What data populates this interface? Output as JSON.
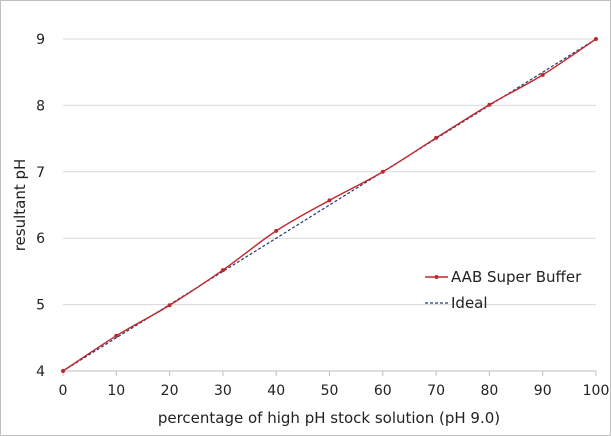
{
  "chart_data": {
    "type": "line",
    "title": "",
    "xlabel": "percentage of high pH stock solution (pH 9.0)",
    "ylabel": "resultant pH",
    "xlim": [
      0,
      100
    ],
    "ylim": [
      4,
      9
    ],
    "xticks": [
      0,
      10,
      20,
      30,
      40,
      50,
      60,
      70,
      80,
      90,
      100
    ],
    "yticks": [
      4,
      5,
      6,
      7,
      8,
      9
    ],
    "grid": "horizontal",
    "legend_position": "right",
    "series": [
      {
        "name": "AAB Super Buffer",
        "color": "#c0282d",
        "style": "solid-with-markers",
        "x": [
          0,
          10,
          20,
          30,
          40,
          50,
          60,
          70,
          80,
          90,
          100
        ],
        "y": [
          4.0,
          4.53,
          4.99,
          5.52,
          6.11,
          6.57,
          7.0,
          7.51,
          8.01,
          8.46,
          9.0
        ]
      },
      {
        "name": "Ideal",
        "color": "#1f3a6e",
        "style": "dashed",
        "x": [
          0,
          10,
          20,
          30,
          40,
          50,
          60,
          70,
          80,
          90,
          100
        ],
        "y": [
          4.0,
          4.5,
          5.0,
          5.5,
          6.0,
          6.5,
          7.0,
          7.5,
          8.0,
          8.5,
          9.0
        ]
      }
    ]
  }
}
